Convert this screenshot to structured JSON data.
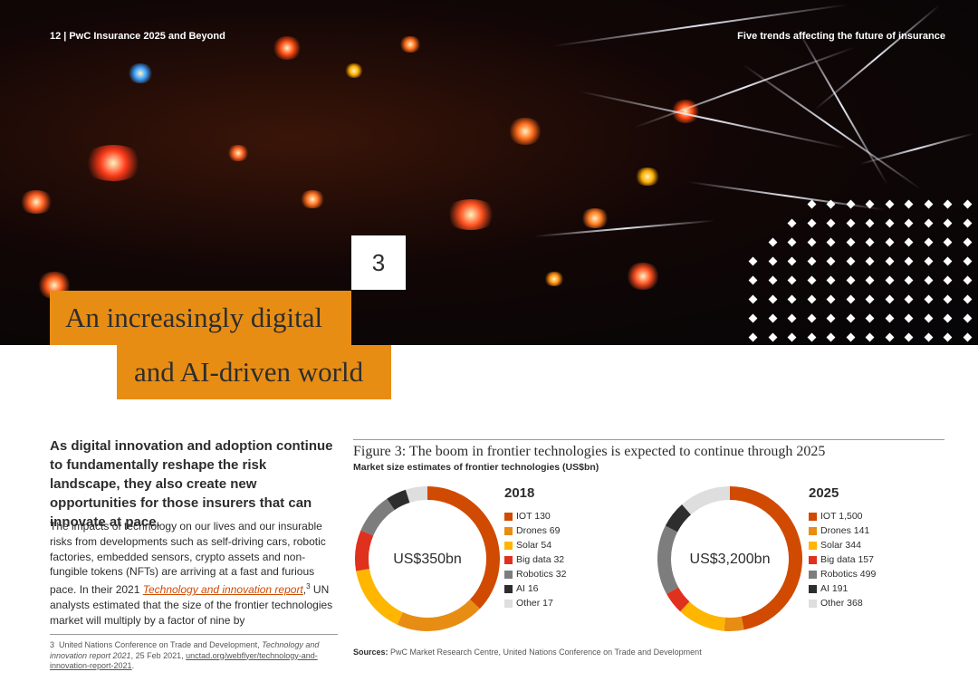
{
  "header": {
    "left_text": "12  |  PwC Insurance 2025 and Beyond",
    "right_text": "Five trends affecting the future of insurance"
  },
  "chapter": {
    "number": "3",
    "title_line1": "An increasingly digital",
    "title_line2": "and AI-driven world"
  },
  "article": {
    "lead": "As digital innovation and adoption continue to fundamentally reshape the risk landscape, they also create new opportunities for those insurers that can innovate at pace.",
    "body_part1": "The impacts of technology on our lives and our insurable risks from developments such as self-driving cars, robotic factories, embedded sensors, crypto assets and non-fungible tokens (NFTs) are arriving at a fast and furious pace. In their 2021 ",
    "body_link": "Technology and innovation report",
    "body_sup": "3",
    "body_part2": " UN analysts estimated that the size of the frontier technologies market will multiply by a factor of nine by"
  },
  "footnote": {
    "number": "3",
    "text1": "United Nations Conference on Trade and Development, ",
    "italic": "Technology and innovation report 2021",
    "text2": ", 25 Feb 2021, ",
    "url": "unctad.org/webflyer/technology-and-innovation-report-2021",
    "end": "."
  },
  "figure": {
    "title": "Figure 3: The boom in frontier technologies is expected to continue through 2025",
    "subtitle": "Market size estimates of frontier technologies (US$bn)",
    "sources_label": "Sources:",
    "sources_text": " PwC Market Research Centre, United Nations Conference on Trade and Development"
  },
  "colors": {
    "accent_orange": "#e88d14",
    "iot": "#d04a02",
    "drones": "#e88d14",
    "solar": "#ffb600",
    "big_data": "#e0301e",
    "robotics": "#7d7d7d",
    "ai": "#2d2d2d",
    "other": "#dedede"
  },
  "chart_data": [
    {
      "type": "pie",
      "donut": true,
      "year": "2018",
      "center_label": "US$350bn",
      "unit": "US$bn",
      "categories": [
        "IOT",
        "Drones",
        "Solar",
        "Big data",
        "Robotics",
        "AI",
        "Other"
      ],
      "values": [
        130,
        69,
        54,
        32,
        32,
        16,
        17
      ],
      "legend_labels": [
        "IOT 130",
        "Drones 69",
        "Solar 54",
        "Big data 32",
        "Robotics 32",
        "AI 16",
        "Other 17"
      ],
      "colors": [
        "#d04a02",
        "#e88d14",
        "#ffb600",
        "#e0301e",
        "#7d7d7d",
        "#2d2d2d",
        "#dedede"
      ],
      "legend_position": "right"
    },
    {
      "type": "pie",
      "donut": true,
      "year": "2025",
      "center_label": "US$3,200bn",
      "unit": "US$bn",
      "categories": [
        "IOT",
        "Drones",
        "Solar",
        "Big data",
        "Robotics",
        "AI",
        "Other"
      ],
      "values": [
        1500,
        141,
        344,
        157,
        499,
        191,
        368
      ],
      "legend_labels": [
        "IOT 1,500",
        "Drones 141",
        "Solar 344",
        "Big data 157",
        "Robotics 499",
        "AI 191",
        "Other 368"
      ],
      "colors": [
        "#d04a02",
        "#e88d14",
        "#ffb600",
        "#e0301e",
        "#7d7d7d",
        "#2d2d2d",
        "#dedede"
      ],
      "legend_position": "right"
    }
  ]
}
